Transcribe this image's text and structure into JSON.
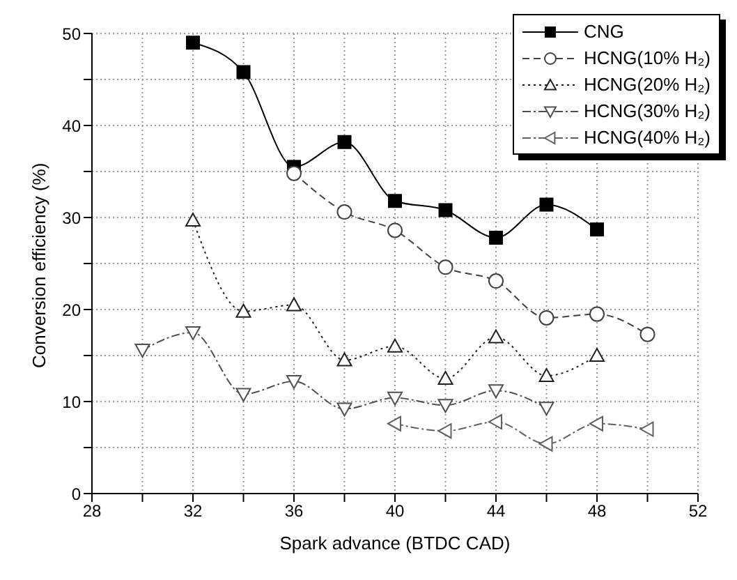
{
  "chart_data": {
    "type": "line",
    "xlabel": "Spark advance (BTDC CAD)",
    "ylabel": "Conversion efficiency (%)",
    "xlim": [
      28,
      52
    ],
    "xticks": [
      28,
      {
        "value": 30,
        "label": null
      },
      32,
      {
        "value": 34,
        "label": null
      },
      36,
      {
        "value": 38,
        "label": null
      },
      40,
      {
        "value": 42,
        "label": null
      },
      44,
      {
        "value": 46,
        "label": null
      },
      48,
      {
        "value": 50,
        "label": null
      },
      52
    ],
    "ylim": [
      0,
      50
    ],
    "yticks": [
      0,
      {
        "value": 5,
        "label": null
      },
      10,
      {
        "value": 15,
        "label": null
      },
      20,
      {
        "value": 25,
        "label": null
      },
      30,
      {
        "value": 35,
        "label": null
      },
      40,
      {
        "value": 45,
        "label": null
      },
      50
    ],
    "grid": true,
    "legend": "top right",
    "series": [
      {
        "name": "CNG",
        "color": "#000000",
        "marker": "square",
        "line_style": "solid",
        "x": [
          32,
          34,
          36,
          38,
          40,
          42,
          44,
          46,
          48
        ],
        "values": [
          49,
          45.8,
          35.5,
          38.2,
          31.8,
          30.8,
          27.8,
          31.4,
          28.7
        ]
      },
      {
        "name": "HCNG(10% H₂)",
        "color": "#404040",
        "marker": "circle",
        "line_style": "dashed",
        "x": [
          36,
          38,
          40,
          42,
          44,
          46,
          48,
          50
        ],
        "values": [
          34.8,
          30.6,
          28.6,
          24.6,
          23.1,
          19.1,
          19.5,
          17.3
        ]
      },
      {
        "name": "HCNG(20% H₂)",
        "color": "#202020",
        "marker": "triangle",
        "line_style": "dotted",
        "x": [
          32,
          34,
          36,
          38,
          40,
          42,
          44,
          46,
          48
        ],
        "values": [
          29.7,
          19.8,
          20.5,
          14.5,
          16,
          12.5,
          17,
          12.8,
          15
        ]
      },
      {
        "name": "HCNG(30% H₂)",
        "color": "#505050",
        "marker": "triangle-down",
        "line_style": "dashdot",
        "x": [
          30,
          32,
          34,
          36,
          38,
          40,
          42,
          44,
          46
        ],
        "values": [
          15.6,
          17.5,
          10.8,
          12.2,
          9.2,
          10.4,
          9.6,
          11.2,
          9.3
        ]
      },
      {
        "name": "HCNG(40% H₂)",
        "color": "#606060",
        "marker": "triangle-left",
        "line_style": "dashdot",
        "x": [
          40,
          42,
          44,
          46,
          48,
          50
        ],
        "values": [
          7.6,
          6.8,
          7.8,
          5.4,
          7.6,
          7
        ]
      }
    ]
  }
}
